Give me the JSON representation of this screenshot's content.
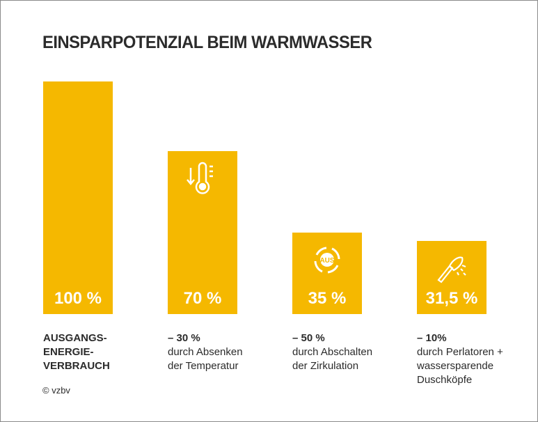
{
  "chart_data": {
    "type": "bar",
    "title": "EINSPARPOTENZIAL BEIM WARMWASSER",
    "categories": [
      "AUSGANGS-ENERGIE-VERBRAUCH",
      "durch Absenken der Temperatur",
      "durch Abschalten der Zirkulation",
      "durch Perlatoren + wassersparende Duschköpfe"
    ],
    "values": [
      100,
      70,
      35,
      31.5
    ],
    "ylim": [
      0,
      100
    ],
    "grid": false,
    "bar_color": "#F5B800",
    "bars": [
      {
        "value_label": "100 %",
        "icon": "",
        "label_bold": [
          "AUSGANGS-",
          "ENERGIE-",
          "VERBRAUCH"
        ],
        "label_lines": []
      },
      {
        "value_label": "70 %",
        "icon": "thermometer-down-icon",
        "label_bold": [
          "– 30 %"
        ],
        "label_lines": [
          "durch Absenken",
          "der Temperatur"
        ]
      },
      {
        "value_label": "35 %",
        "icon": "circulation-off-icon",
        "icon_text": "AUS",
        "label_bold": [
          "– 50 %"
        ],
        "label_lines": [
          "durch Abschalten",
          "der Zirkulation"
        ]
      },
      {
        "value_label": "31,5 %",
        "icon": "shower-head-icon",
        "label_bold": [
          "– 10%"
        ],
        "label_lines": [
          "durch Perlatoren +",
          "wassersparende",
          "Duschköpfe"
        ]
      }
    ]
  },
  "source": "© vzbv"
}
